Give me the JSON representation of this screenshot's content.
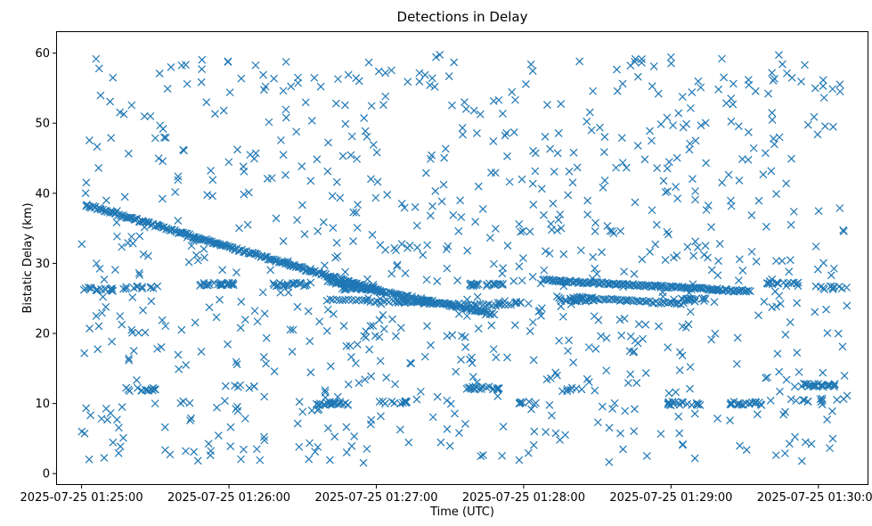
{
  "chart_data": {
    "type": "scatter",
    "title": "Detections in Delay",
    "xlabel": "Time (UTC)",
    "ylabel": "Bistatic Delay (km)",
    "marker": "x",
    "color": "#1f77b4",
    "grid": false,
    "legend": "none",
    "xlim": [
      "2025-07-25 01:24:50",
      "2025-07-25 01:30:20"
    ],
    "ylim": [
      -1.5,
      63
    ],
    "xticks": [
      {
        "value": "2025-07-25 01:25:00",
        "label": "2025-07-25 01:25:00"
      },
      {
        "value": "2025-07-25 01:26:00",
        "label": "2025-07-25 01:26:00"
      },
      {
        "value": "2025-07-25 01:27:00",
        "label": "2025-07-25 01:27:00"
      },
      {
        "value": "2025-07-25 01:28:00",
        "label": "2025-07-25 01:28:00"
      },
      {
        "value": "2025-07-25 01:29:00",
        "label": "2025-07-25 01:29:00"
      },
      {
        "value": "2025-07-25 01:30:00",
        "label": "2025-07-25 01:30:00"
      }
    ],
    "yticks": [
      0,
      10,
      20,
      30,
      40,
      50,
      60
    ],
    "series": [
      {
        "tracks": [
          {
            "start": [
              "2025-07-25 01:25:02",
              38.3
            ],
            "end": [
              "2025-07-25 01:27:02",
              26.0
            ],
            "count": 220
          },
          {
            "start": [
              "2025-07-25 01:26:40",
              27.5
            ],
            "end": [
              "2025-07-25 01:27:48",
              22.8
            ],
            "count": 110
          },
          {
            "start": [
              "2025-07-25 01:28:08",
              27.6
            ],
            "end": [
              "2025-07-25 01:29:32",
              26.0
            ],
            "count": 150
          },
          {
            "start": [
              "2025-07-25 01:26:40",
              24.8
            ],
            "end": [
              "2025-07-25 01:27:55",
              24.0
            ],
            "count": 60
          },
          {
            "start": [
              "2025-07-25 01:28:20",
              25.2
            ],
            "end": [
              "2025-07-25 01:29:05",
              24.2
            ],
            "count": 50
          }
        ],
        "clusters": [
          {
            "x": "2025-07-25 01:25:07",
            "y": 26.3,
            "count": 18
          },
          {
            "x": "2025-07-25 01:25:24",
            "y": 26.5,
            "count": 12
          },
          {
            "x": "2025-07-25 01:25:55",
            "y": 27.0,
            "count": 28
          },
          {
            "x": "2025-07-25 01:26:25",
            "y": 27.0,
            "count": 24
          },
          {
            "x": "2025-07-25 01:26:52",
            "y": 26.5,
            "count": 18
          },
          {
            "x": "2025-07-25 01:27:15",
            "y": 24.5,
            "count": 30
          },
          {
            "x": "2025-07-25 01:27:45",
            "y": 27.0,
            "count": 22
          },
          {
            "x": "2025-07-25 01:27:56",
            "y": 24.5,
            "count": 10
          },
          {
            "x": "2025-07-25 01:28:22",
            "y": 24.8,
            "count": 22
          },
          {
            "x": "2025-07-25 01:29:08",
            "y": 24.8,
            "count": 20
          },
          {
            "x": "2025-07-25 01:29:45",
            "y": 27.2,
            "count": 14
          },
          {
            "x": "2025-07-25 01:30:05",
            "y": 26.5,
            "count": 12
          },
          {
            "x": "2025-07-25 01:25:25",
            "y": 12.0,
            "count": 14
          },
          {
            "x": "2025-07-25 01:26:05",
            "y": 12.4,
            "count": 6
          },
          {
            "x": "2025-07-25 01:26:42",
            "y": 10.0,
            "count": 22
          },
          {
            "x": "2025-07-25 01:27:08",
            "y": 10.2,
            "count": 12
          },
          {
            "x": "2025-07-25 01:27:43",
            "y": 12.2,
            "count": 22
          },
          {
            "x": "2025-07-25 01:28:05",
            "y": 10.0,
            "count": 8
          },
          {
            "x": "2025-07-25 01:28:22",
            "y": 12.0,
            "count": 8
          },
          {
            "x": "2025-07-25 01:29:05",
            "y": 10.0,
            "count": 18
          },
          {
            "x": "2025-07-25 01:29:30",
            "y": 10.0,
            "count": 18
          },
          {
            "x": "2025-07-25 01:30:00",
            "y": 12.6,
            "count": 22
          },
          {
            "x": "2025-07-25 01:29:55",
            "y": 10.5,
            "count": 10
          },
          {
            "x": "2025-07-25 01:28:33",
            "y": 34.5,
            "count": 5
          },
          {
            "x": "2025-07-25 01:29:08",
            "y": 31.0,
            "count": 5
          }
        ],
        "background": {
          "count": 850,
          "xrange": [
            "2025-07-25 01:25:00",
            "2025-07-25 01:30:12"
          ],
          "yrange": [
            1.5,
            60
          ]
        }
      }
    ]
  }
}
